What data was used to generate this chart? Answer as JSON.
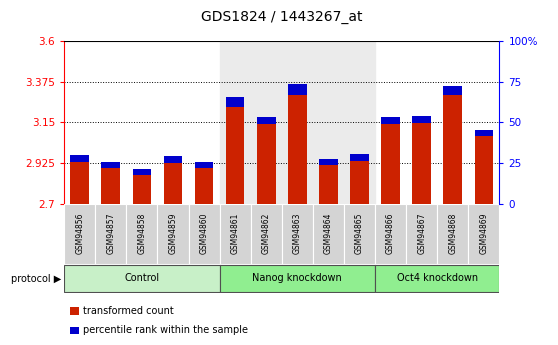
{
  "title": "GDS1824 / 1443267_at",
  "samples": [
    "GSM94856",
    "GSM94857",
    "GSM94858",
    "GSM94859",
    "GSM94860",
    "GSM94861",
    "GSM94862",
    "GSM94863",
    "GSM94864",
    "GSM94865",
    "GSM94866",
    "GSM94867",
    "GSM94868",
    "GSM94869"
  ],
  "red_values": [
    2.93,
    2.895,
    2.86,
    2.925,
    2.895,
    3.235,
    3.14,
    3.305,
    2.915,
    2.935,
    3.14,
    3.148,
    3.3,
    3.075
  ],
  "blue_values": [
    0.038,
    0.033,
    0.033,
    0.038,
    0.033,
    0.058,
    0.038,
    0.058,
    0.033,
    0.038,
    0.038,
    0.038,
    0.053,
    0.033
  ],
  "groups": [
    {
      "label": "Control",
      "start": 0,
      "end": 5,
      "color": "#c8f0c8"
    },
    {
      "label": "Nanog knockdown",
      "start": 5,
      "end": 10,
      "color": "#90ee90"
    },
    {
      "label": "Oct4 knockdown",
      "start": 10,
      "end": 14,
      "color": "#90ee90"
    }
  ],
  "ymin": 2.7,
  "ymax": 3.6,
  "yticks_left": [
    2.7,
    2.925,
    3.15,
    3.375,
    3.6
  ],
  "ytick_labels_left": [
    "2.7",
    "2.925",
    "3.15",
    "3.375",
    "3.6"
  ],
  "yticks_right_pct": [
    0,
    25,
    50,
    75,
    100
  ],
  "ytick_labels_right": [
    "0",
    "25",
    "50",
    "75",
    "100%"
  ],
  "bar_color_red": "#cc2200",
  "bar_color_blue": "#0000cc",
  "bar_width": 0.6,
  "nanog_bg_color": "#ebebeb",
  "sample_cell_color": "#d4d4d4",
  "protocol_label": "protocol",
  "legend_red": "transformed count",
  "legend_blue": "percentile rank within the sample",
  "title_fontsize": 10,
  "tick_fontsize": 7.5,
  "label_fontsize": 7
}
